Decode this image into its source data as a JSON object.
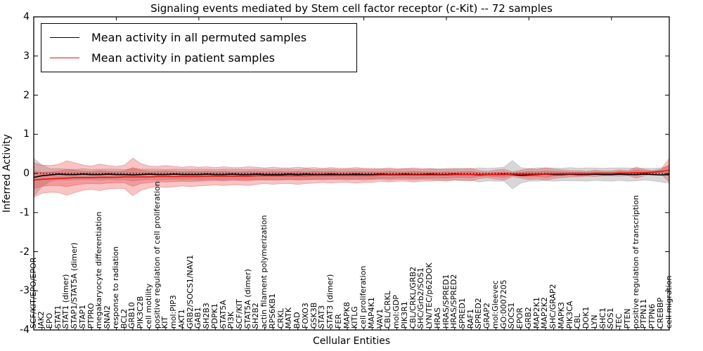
{
  "chart_data": {
    "type": "line",
    "title": "Signaling events mediated by Stem cell factor receptor (c-Kit) -- 72 samples",
    "xlabel": "Cellular Entities",
    "ylabel": "Inferred Activity",
    "ylim": [
      -4,
      4
    ],
    "yticks": [
      {
        "label": "4",
        "value": 4
      },
      {
        "label": "3",
        "value": 3
      },
      {
        "label": "2",
        "value": 2
      },
      {
        "label": "1",
        "value": 1
      },
      {
        "label": "0",
        "value": 0
      },
      {
        "label": "-1",
        "value": -1
      },
      {
        "label": "-2",
        "value": -2
      },
      {
        "label": "-3",
        "value": -3
      },
      {
        "label": "-4",
        "value": -4
      }
    ],
    "x_major_tick_interval": 10,
    "grid": false,
    "zero_reference_line": 0,
    "legend": {
      "position": "upper left",
      "items": [
        {
          "label": "Mean activity in all permuted samples",
          "color": "#000000"
        },
        {
          "label": "Mean activity in patient samples",
          "color": "#ee1111"
        }
      ]
    },
    "entities": [
      "SCF/KIT/EPO/EPOR",
      "JAK2",
      "EPO",
      "STAT1",
      "STAT1 (dimer)",
      "STAP1/STAT5A (dimer)",
      "STAP1",
      "PTPRO",
      "megakaryocyte differentiation",
      "SNAI2",
      "response to radiation",
      "BCL2",
      "GRB10",
      "PIK3C2B",
      "cell motility",
      "positive regulation of cell proliferation",
      "KIT",
      "mol:PIP3",
      "AKT1",
      "GRB2/SOCS1/NAV1",
      "GAB1",
      "SH2B3",
      "PDPK1",
      "STAT5A",
      "PI3K",
      "SCF/KIT",
      "STAT5A (dimer)",
      "SH2B2",
      "actin filament polymerization",
      "RPS6KB1",
      "CRKL",
      "MATK",
      "BAD",
      "FOXO3",
      "GSK3B",
      "STAT3",
      "STAT3 (dimer)",
      "FER",
      "MAPK8",
      "KITLG",
      "cell proliferation",
      "MAP4K1",
      "VAV1",
      "CBL/CRKL",
      "mol:GDP",
      "PIK3R1",
      "CBL/CRKL/GRB2",
      "SHC/Grb2/SOS1",
      "LYN/TEC/p62DOK",
      "HRAS",
      "HRAS/SPRED1",
      "HRAS/SPRED2",
      "SPRED1",
      "RAF1",
      "SPRED2",
      "GRAP2",
      "mol:Gleevec",
      "GO:0007205",
      "SOCS1",
      "EPOR",
      "GRB2",
      "MAP2K1",
      "MAP2K2",
      "SHC/GRAP2",
      "MAPK3",
      "PIK3CA",
      "CBL",
      "DOK1",
      "LYN",
      "SHC1",
      "SOS1",
      "TEC",
      "PTEN",
      "positive regulation of transcription",
      "PTPN11",
      "PTPN6",
      "CREBBP",
      "cell migration"
    ],
    "series": [
      {
        "name": "permuted-mean",
        "label": "Mean activity in all permuted samples",
        "color": "#000000",
        "values": [
          -0.1,
          -0.06,
          -0.04,
          -0.02,
          -0.03,
          -0.03,
          -0.02,
          -0.03,
          -0.03,
          -0.02,
          -0.03,
          -0.03,
          -0.04,
          -0.03,
          -0.02,
          -0.03,
          -0.03,
          -0.02,
          -0.03,
          -0.03,
          -0.03,
          -0.02,
          -0.03,
          -0.03,
          -0.02,
          -0.03,
          -0.03,
          -0.02,
          -0.03,
          -0.03,
          -0.03,
          -0.02,
          -0.03,
          -0.02,
          -0.03,
          -0.03,
          -0.02,
          -0.03,
          -0.03,
          -0.02,
          -0.03,
          -0.03,
          -0.02,
          -0.03,
          -0.03,
          -0.02,
          -0.03,
          -0.03,
          -0.02,
          -0.03,
          -0.03,
          -0.02,
          -0.03,
          -0.03,
          -0.04,
          -0.03,
          -0.03,
          -0.02,
          -0.03,
          -0.05,
          -0.04,
          -0.03,
          -0.02,
          -0.03,
          -0.03,
          -0.02,
          -0.03,
          -0.03,
          -0.02,
          -0.03,
          -0.03,
          -0.02,
          -0.03,
          -0.03,
          -0.02,
          -0.03,
          -0.04,
          -0.03
        ]
      },
      {
        "name": "patient-mean",
        "label": "Mean activity in patient samples",
        "color": "#ee1111",
        "values": [
          -0.17,
          -0.15,
          -0.14,
          -0.13,
          -0.12,
          -0.11,
          -0.11,
          -0.11,
          -0.1,
          -0.1,
          -0.1,
          -0.09,
          -0.09,
          -0.09,
          -0.09,
          -0.08,
          -0.08,
          -0.08,
          -0.08,
          -0.08,
          -0.08,
          -0.07,
          -0.07,
          -0.07,
          -0.07,
          -0.07,
          -0.07,
          -0.06,
          -0.06,
          -0.06,
          -0.06,
          -0.06,
          -0.06,
          -0.06,
          -0.05,
          -0.05,
          -0.05,
          -0.05,
          -0.05,
          -0.05,
          -0.05,
          -0.05,
          -0.04,
          -0.04,
          -0.04,
          -0.04,
          -0.04,
          -0.04,
          -0.04,
          -0.04,
          -0.04,
          -0.03,
          -0.03,
          -0.03,
          -0.03,
          -0.03,
          -0.03,
          -0.03,
          -0.02,
          -0.02,
          -0.02,
          -0.02,
          -0.02,
          -0.01,
          -0.01,
          -0.01,
          -0.01,
          -0.01,
          0.0,
          0.0,
          0.0,
          0.01,
          0.01,
          0.02,
          0.02,
          0.03,
          0.05,
          0.08
        ]
      }
    ],
    "bands": [
      {
        "name": "permuted-std-band",
        "series_index": 0,
        "color": "rgba(130,130,130,0.32)",
        "stroke": "rgba(120,120,120,0.35)",
        "layers": [
          1
        ],
        "half_widths": [
          0.48,
          0.28,
          0.16,
          0.14,
          0.14,
          0.13,
          0.14,
          0.13,
          0.14,
          0.13,
          0.14,
          0.13,
          0.16,
          0.14,
          0.13,
          0.14,
          0.13,
          0.13,
          0.14,
          0.13,
          0.14,
          0.13,
          0.13,
          0.14,
          0.13,
          0.14,
          0.13,
          0.13,
          0.14,
          0.13,
          0.14,
          0.13,
          0.13,
          0.14,
          0.13,
          0.14,
          0.13,
          0.13,
          0.14,
          0.13,
          0.14,
          0.13,
          0.13,
          0.14,
          0.13,
          0.14,
          0.14,
          0.13,
          0.14,
          0.15,
          0.14,
          0.15,
          0.16,
          0.15,
          0.18,
          0.16,
          0.17,
          0.18,
          0.36,
          0.2,
          0.16,
          0.17,
          0.16,
          0.17,
          0.16,
          0.17,
          0.16,
          0.17,
          0.16,
          0.16,
          0.17,
          0.16,
          0.17,
          0.16,
          0.15,
          0.16,
          0.18,
          0.22
        ]
      },
      {
        "name": "patient-std-band",
        "series_index": 1,
        "color": "rgba(232,60,60,0.30)",
        "stroke": "rgba(205,40,40,0.35)",
        "layers": [
          2,
          1
        ],
        "half_widths": [
          0.22,
          0.18,
          0.17,
          0.18,
          0.22,
          0.19,
          0.16,
          0.15,
          0.17,
          0.15,
          0.14,
          0.15,
          0.24,
          0.17,
          0.14,
          0.13,
          0.14,
          0.13,
          0.12,
          0.13,
          0.12,
          0.12,
          0.11,
          0.12,
          0.11,
          0.11,
          0.12,
          0.11,
          0.1,
          0.11,
          0.1,
          0.1,
          0.11,
          0.1,
          0.1,
          0.09,
          0.1,
          0.09,
          0.09,
          0.1,
          0.09,
          0.09,
          0.08,
          0.09,
          0.08,
          0.08,
          0.09,
          0.08,
          0.08,
          0.07,
          0.08,
          0.07,
          0.07,
          0.08,
          0.05,
          0.04,
          0.06,
          0.07,
          0.03,
          0.05,
          0.07,
          0.06,
          0.08,
          0.06,
          0.05,
          0.04,
          0.04,
          0.03,
          0.04,
          0.03,
          0.03,
          0.04,
          0.03,
          0.07,
          0.04,
          0.02,
          0.03,
          0.15
        ]
      }
    ]
  }
}
